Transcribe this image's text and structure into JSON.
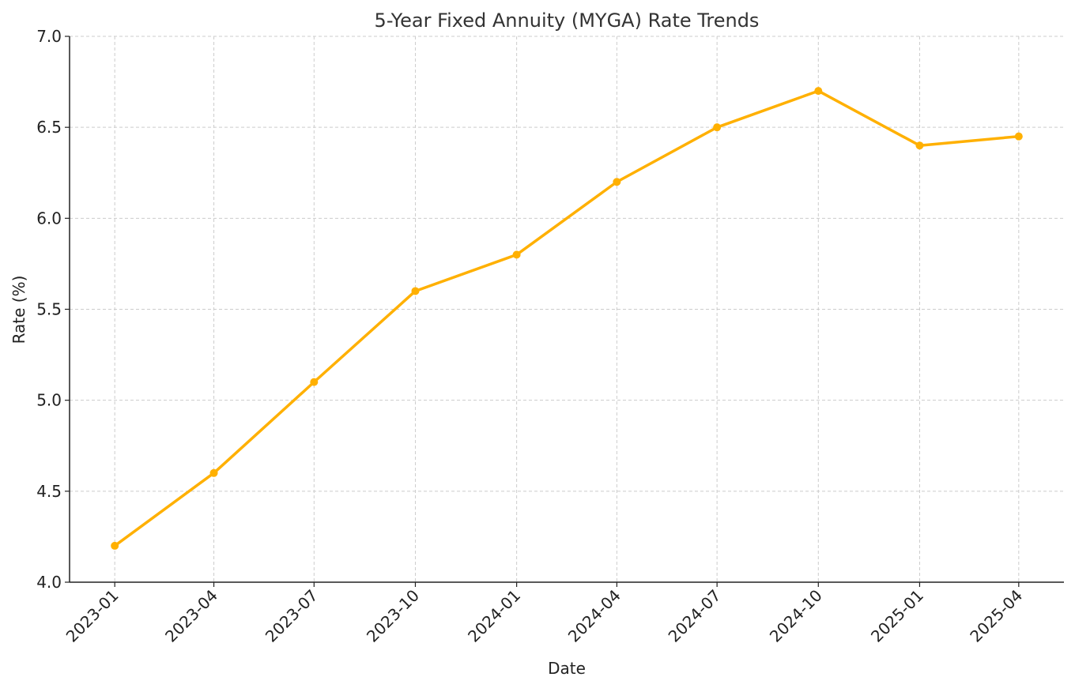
{
  "chart_data": {
    "type": "line",
    "title": "5-Year Fixed Annuity (MYGA) Rate Trends",
    "xlabel": "Date",
    "ylabel": "Rate (%)",
    "x": [
      "2023-01",
      "2023-04",
      "2023-07",
      "2023-10",
      "2024-01",
      "2024-04",
      "2024-07",
      "2024-10",
      "2025-01",
      "2025-04"
    ],
    "series": [
      {
        "values": [
          4.2,
          4.6,
          5.1,
          5.6,
          5.8,
          6.2,
          6.5,
          6.7,
          6.4,
          6.45
        ],
        "color": "#FFB000",
        "marker": "circle"
      }
    ],
    "ylim": [
      4.0,
      7.0
    ],
    "yticks": [
      "4.0",
      "4.5",
      "5.0",
      "5.5",
      "6.0",
      "6.5",
      "7.0"
    ],
    "xticks": [
      "2023-01",
      "2023-04",
      "2023-07",
      "2023-10",
      "2024-01",
      "2024-04",
      "2024-07",
      "2024-10",
      "2025-01",
      "2025-04"
    ],
    "grid": true,
    "grid_style": "dashed",
    "legend": "none"
  }
}
